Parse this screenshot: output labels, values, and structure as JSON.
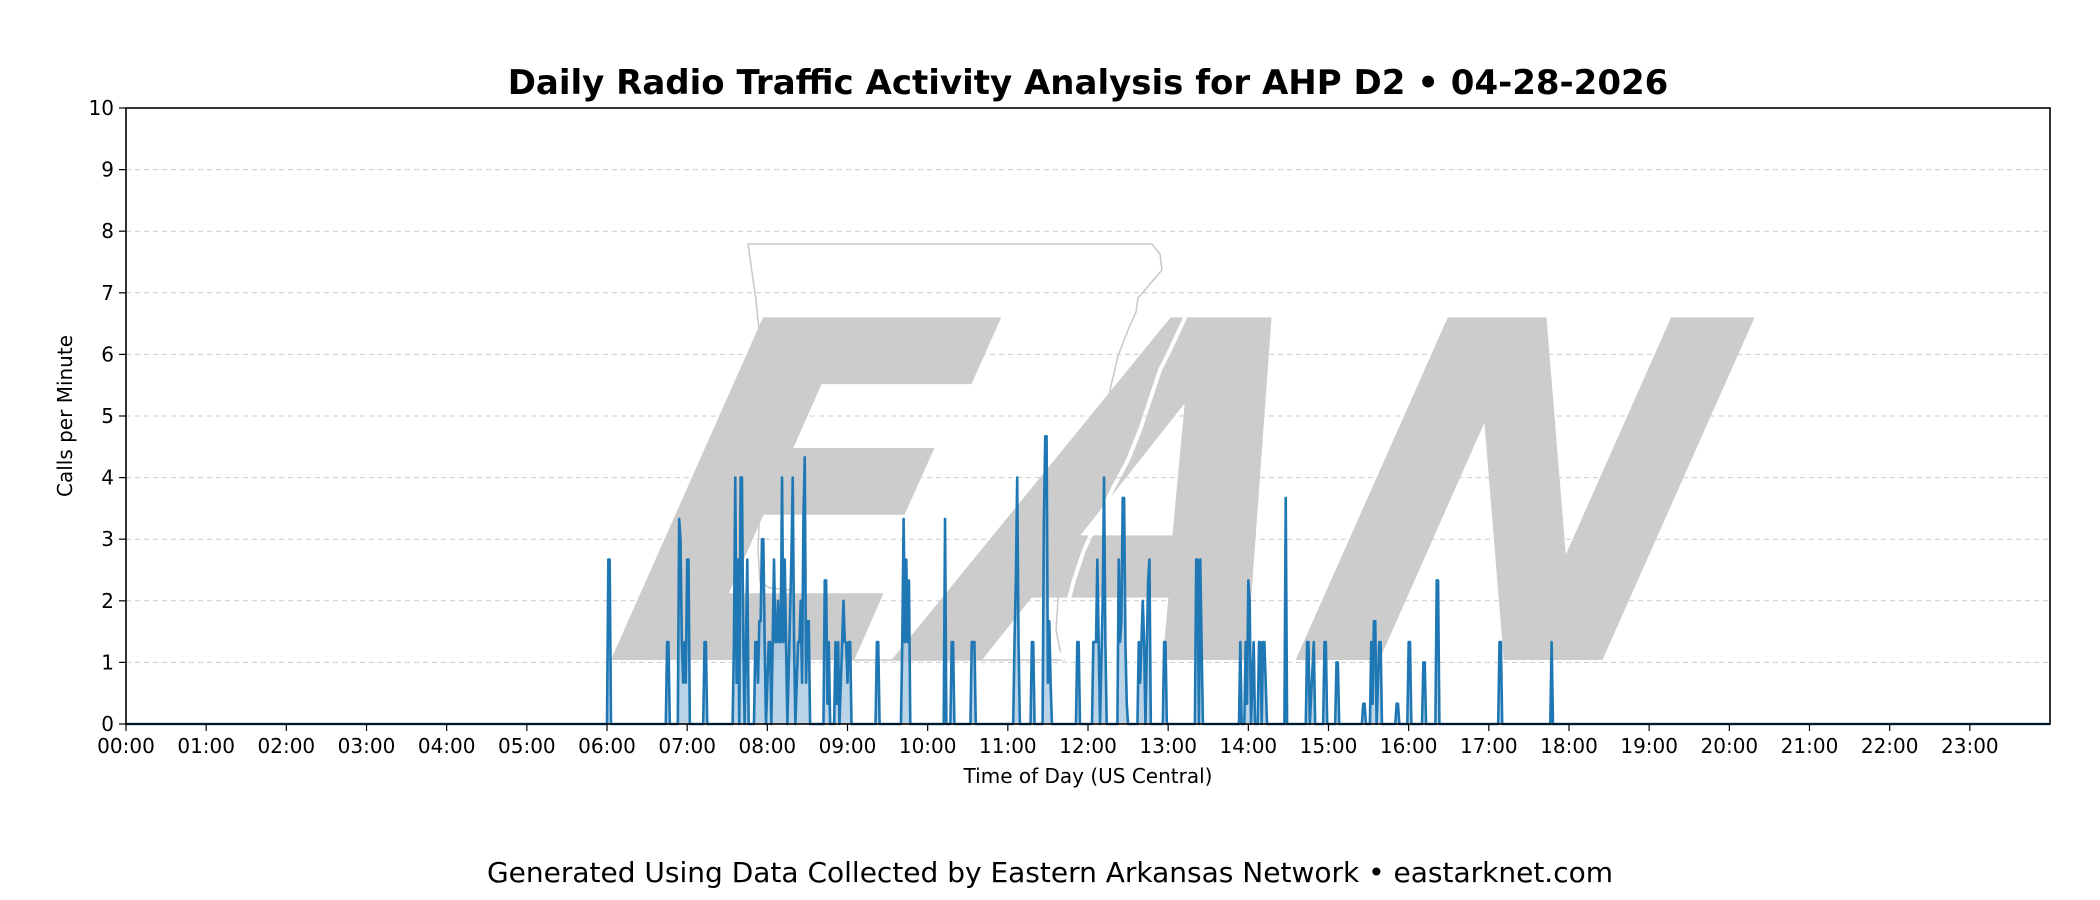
{
  "chart_data": {
    "type": "area",
    "title": "Daily Radio Traffic Activity Analysis for AHP D2 • 04-28-2026",
    "xlabel": "Time of Day (US Central)",
    "ylabel": "Calls per Minute",
    "ylim": [
      0,
      10
    ],
    "xlim_minutes": [
      0,
      1440
    ],
    "x_ticks": [
      "00:00",
      "01:00",
      "02:00",
      "03:00",
      "04:00",
      "05:00",
      "06:00",
      "07:00",
      "08:00",
      "09:00",
      "10:00",
      "11:00",
      "12:00",
      "13:00",
      "14:00",
      "15:00",
      "16:00",
      "17:00",
      "18:00",
      "19:00",
      "20:00",
      "21:00",
      "22:00",
      "23:00"
    ],
    "y_ticks": [
      0,
      1,
      2,
      3,
      4,
      5,
      6,
      7,
      8,
      9,
      10
    ],
    "grid": "horizontal dashed",
    "series_color": "#1f77b4",
    "fill_color": "#a9c8e0",
    "watermark_text": "EAN",
    "points": [
      [
        0,
        0
      ],
      [
        360,
        0
      ],
      [
        361,
        2.67
      ],
      [
        362,
        2.67
      ],
      [
        363,
        0
      ],
      [
        404,
        0
      ],
      [
        405,
        1.33
      ],
      [
        406,
        1.33
      ],
      [
        407,
        0
      ],
      [
        413,
        0
      ],
      [
        414,
        3.33
      ],
      [
        415,
        3
      ],
      [
        416,
        1.33
      ],
      [
        417,
        0.67
      ],
      [
        418,
        1.33
      ],
      [
        419,
        0.67
      ],
      [
        420,
        2.67
      ],
      [
        421,
        2.67
      ],
      [
        422,
        0
      ],
      [
        432,
        0
      ],
      [
        433,
        1.33
      ],
      [
        434,
        1.33
      ],
      [
        435,
        0
      ],
      [
        454,
        0
      ],
      [
        455,
        1.33
      ],
      [
        456,
        4
      ],
      [
        457,
        0.67
      ],
      [
        458,
        2.67
      ],
      [
        459,
        0
      ],
      [
        460,
        4
      ],
      [
        461,
        4
      ],
      [
        462,
        1.33
      ],
      [
        463,
        0
      ],
      [
        465,
        2.67
      ],
      [
        466,
        0
      ],
      [
        470,
        0
      ],
      [
        471,
        1.33
      ],
      [
        472,
        1.33
      ],
      [
        473,
        0.67
      ],
      [
        474,
        1.67
      ],
      [
        475,
        1.67
      ],
      [
        476,
        3
      ],
      [
        477,
        3
      ],
      [
        478,
        1.33
      ],
      [
        479,
        0
      ],
      [
        481,
        1.33
      ],
      [
        482,
        1.33
      ],
      [
        483,
        0
      ],
      [
        485,
        2.67
      ],
      [
        486,
        1.33
      ],
      [
        487,
        1.33
      ],
      [
        488,
        2
      ],
      [
        489,
        1.33
      ],
      [
        490,
        1.33
      ],
      [
        491,
        4
      ],
      [
        492,
        1.33
      ],
      [
        493,
        2.67
      ],
      [
        494,
        1.33
      ],
      [
        495,
        0
      ],
      [
        498,
        2.67
      ],
      [
        499,
        4
      ],
      [
        500,
        1.33
      ],
      [
        501,
        0
      ],
      [
        503,
        1.33
      ],
      [
        504,
        1.33
      ],
      [
        505,
        2
      ],
      [
        506,
        0.67
      ],
      [
        507,
        3.33
      ],
      [
        508,
        4.33
      ],
      [
        509,
        0.67
      ],
      [
        510,
        1.67
      ],
      [
        511,
        1.67
      ],
      [
        512,
        0
      ],
      [
        522,
        0
      ],
      [
        523,
        2.33
      ],
      [
        524,
        2.33
      ],
      [
        525,
        0.33
      ],
      [
        526,
        1.33
      ],
      [
        527,
        0
      ],
      [
        530,
        0
      ],
      [
        531,
        1.33
      ],
      [
        532,
        0.33
      ],
      [
        533,
        1.33
      ],
      [
        534,
        0
      ],
      [
        536,
        1.33
      ],
      [
        537,
        2
      ],
      [
        538,
        1.33
      ],
      [
        539,
        1.33
      ],
      [
        540,
        0.67
      ],
      [
        541,
        1.33
      ],
      [
        542,
        1.33
      ],
      [
        543,
        0
      ],
      [
        561,
        0
      ],
      [
        562,
        1.33
      ],
      [
        563,
        1.33
      ],
      [
        564,
        0
      ],
      [
        580,
        0
      ],
      [
        581,
        1.33
      ],
      [
        582,
        3.33
      ],
      [
        583,
        1.33
      ],
      [
        584,
        2.67
      ],
      [
        585,
        1.33
      ],
      [
        586,
        2.33
      ],
      [
        587,
        0
      ],
      [
        612,
        0
      ],
      [
        613,
        3.33
      ],
      [
        614,
        0
      ],
      [
        617,
        0
      ],
      [
        618,
        1.33
      ],
      [
        619,
        1.33
      ],
      [
        620,
        0
      ],
      [
        632,
        0
      ],
      [
        633,
        1.33
      ],
      [
        634,
        1.33
      ],
      [
        635,
        1.33
      ],
      [
        636,
        0
      ],
      [
        664,
        0
      ],
      [
        665,
        1.33
      ],
      [
        666,
        2.33
      ],
      [
        667,
        4
      ],
      [
        668,
        1.33
      ],
      [
        669,
        0
      ],
      [
        677,
        0
      ],
      [
        678,
        1.33
      ],
      [
        679,
        1.33
      ],
      [
        680,
        0
      ],
      [
        686,
        0
      ],
      [
        687,
        3.33
      ],
      [
        688,
        4.67
      ],
      [
        689,
        4.67
      ],
      [
        690,
        0.67
      ],
      [
        691,
        1.67
      ],
      [
        692,
        0.67
      ],
      [
        693,
        0
      ],
      [
        711,
        0
      ],
      [
        712,
        1.33
      ],
      [
        713,
        1.33
      ],
      [
        714,
        0
      ],
      [
        723,
        0
      ],
      [
        724,
        1.33
      ],
      [
        725,
        1.33
      ],
      [
        726,
        1.33
      ],
      [
        727,
        2.67
      ],
      [
        728,
        1.33
      ],
      [
        729,
        0
      ],
      [
        731,
        2
      ],
      [
        732,
        4
      ],
      [
        733,
        1.33
      ],
      [
        734,
        0
      ],
      [
        742,
        0
      ],
      [
        743,
        2.67
      ],
      [
        744,
        1.33
      ],
      [
        745,
        1.67
      ],
      [
        746,
        3.67
      ],
      [
        747,
        3.67
      ],
      [
        748,
        1.33
      ],
      [
        749,
        0.33
      ],
      [
        750,
        0
      ],
      [
        757,
        0
      ],
      [
        758,
        1.33
      ],
      [
        759,
        0.67
      ],
      [
        760,
        1.33
      ],
      [
        761,
        2
      ],
      [
        762,
        1.33
      ],
      [
        763,
        0
      ],
      [
        765,
        2.33
      ],
      [
        766,
        2.67
      ],
      [
        767,
        0
      ],
      [
        776,
        0
      ],
      [
        777,
        1.33
      ],
      [
        778,
        1.33
      ],
      [
        779,
        0
      ],
      [
        800,
        0
      ],
      [
        801,
        2.67
      ],
      [
        802,
        2.67
      ],
      [
        803,
        0
      ],
      [
        804,
        2.67
      ],
      [
        805,
        1.33
      ],
      [
        806,
        0
      ],
      [
        833,
        0
      ],
      [
        834,
        1.33
      ],
      [
        835,
        0
      ],
      [
        837,
        0
      ],
      [
        838,
        1.33
      ],
      [
        839,
        0.33
      ],
      [
        840,
        2.33
      ],
      [
        841,
        2
      ],
      [
        842,
        0
      ],
      [
        844,
        1.33
      ],
      [
        845,
        0
      ],
      [
        847,
        0
      ],
      [
        848,
        1.33
      ],
      [
        849,
        1.33
      ],
      [
        850,
        0
      ],
      [
        851,
        1.33
      ],
      [
        852,
        1.33
      ],
      [
        853,
        0.67
      ],
      [
        854,
        0
      ],
      [
        867,
        0
      ],
      [
        868,
        3.67
      ],
      [
        869,
        0
      ],
      [
        883,
        0
      ],
      [
        884,
        1.33
      ],
      [
        885,
        1.33
      ],
      [
        886,
        0
      ],
      [
        889,
        1.33
      ],
      [
        890,
        0
      ],
      [
        896,
        0
      ],
      [
        897,
        1.33
      ],
      [
        898,
        1.33
      ],
      [
        899,
        0
      ],
      [
        905,
        0
      ],
      [
        906,
        1
      ],
      [
        907,
        1
      ],
      [
        908,
        0
      ],
      [
        925,
        0
      ],
      [
        926,
        0.33
      ],
      [
        927,
        0.33
      ],
      [
        928,
        0
      ],
      [
        931,
        0
      ],
      [
        932,
        1.33
      ],
      [
        933,
        0.33
      ],
      [
        934,
        1.67
      ],
      [
        935,
        1.67
      ],
      [
        936,
        0
      ],
      [
        938,
        1.33
      ],
      [
        939,
        1.33
      ],
      [
        940,
        0
      ],
      [
        950,
        0
      ],
      [
        951,
        0.33
      ],
      [
        952,
        0.33
      ],
      [
        953,
        0
      ],
      [
        959,
        0
      ],
      [
        960,
        1.33
      ],
      [
        961,
        1.33
      ],
      [
        962,
        0
      ],
      [
        970,
        0
      ],
      [
        971,
        1
      ],
      [
        972,
        1
      ],
      [
        973,
        0
      ],
      [
        980,
        0
      ],
      [
        981,
        2.33
      ],
      [
        982,
        2.33
      ],
      [
        983,
        0
      ],
      [
        1027,
        0
      ],
      [
        1028,
        1.33
      ],
      [
        1029,
        1.33
      ],
      [
        1030,
        0
      ],
      [
        1066,
        0
      ],
      [
        1067,
        1.33
      ],
      [
        1068,
        0
      ],
      [
        1440,
        0
      ]
    ]
  },
  "footer": {
    "text": "Generated Using Data Collected by Eastern Arkansas Network • eastarknet.com"
  }
}
